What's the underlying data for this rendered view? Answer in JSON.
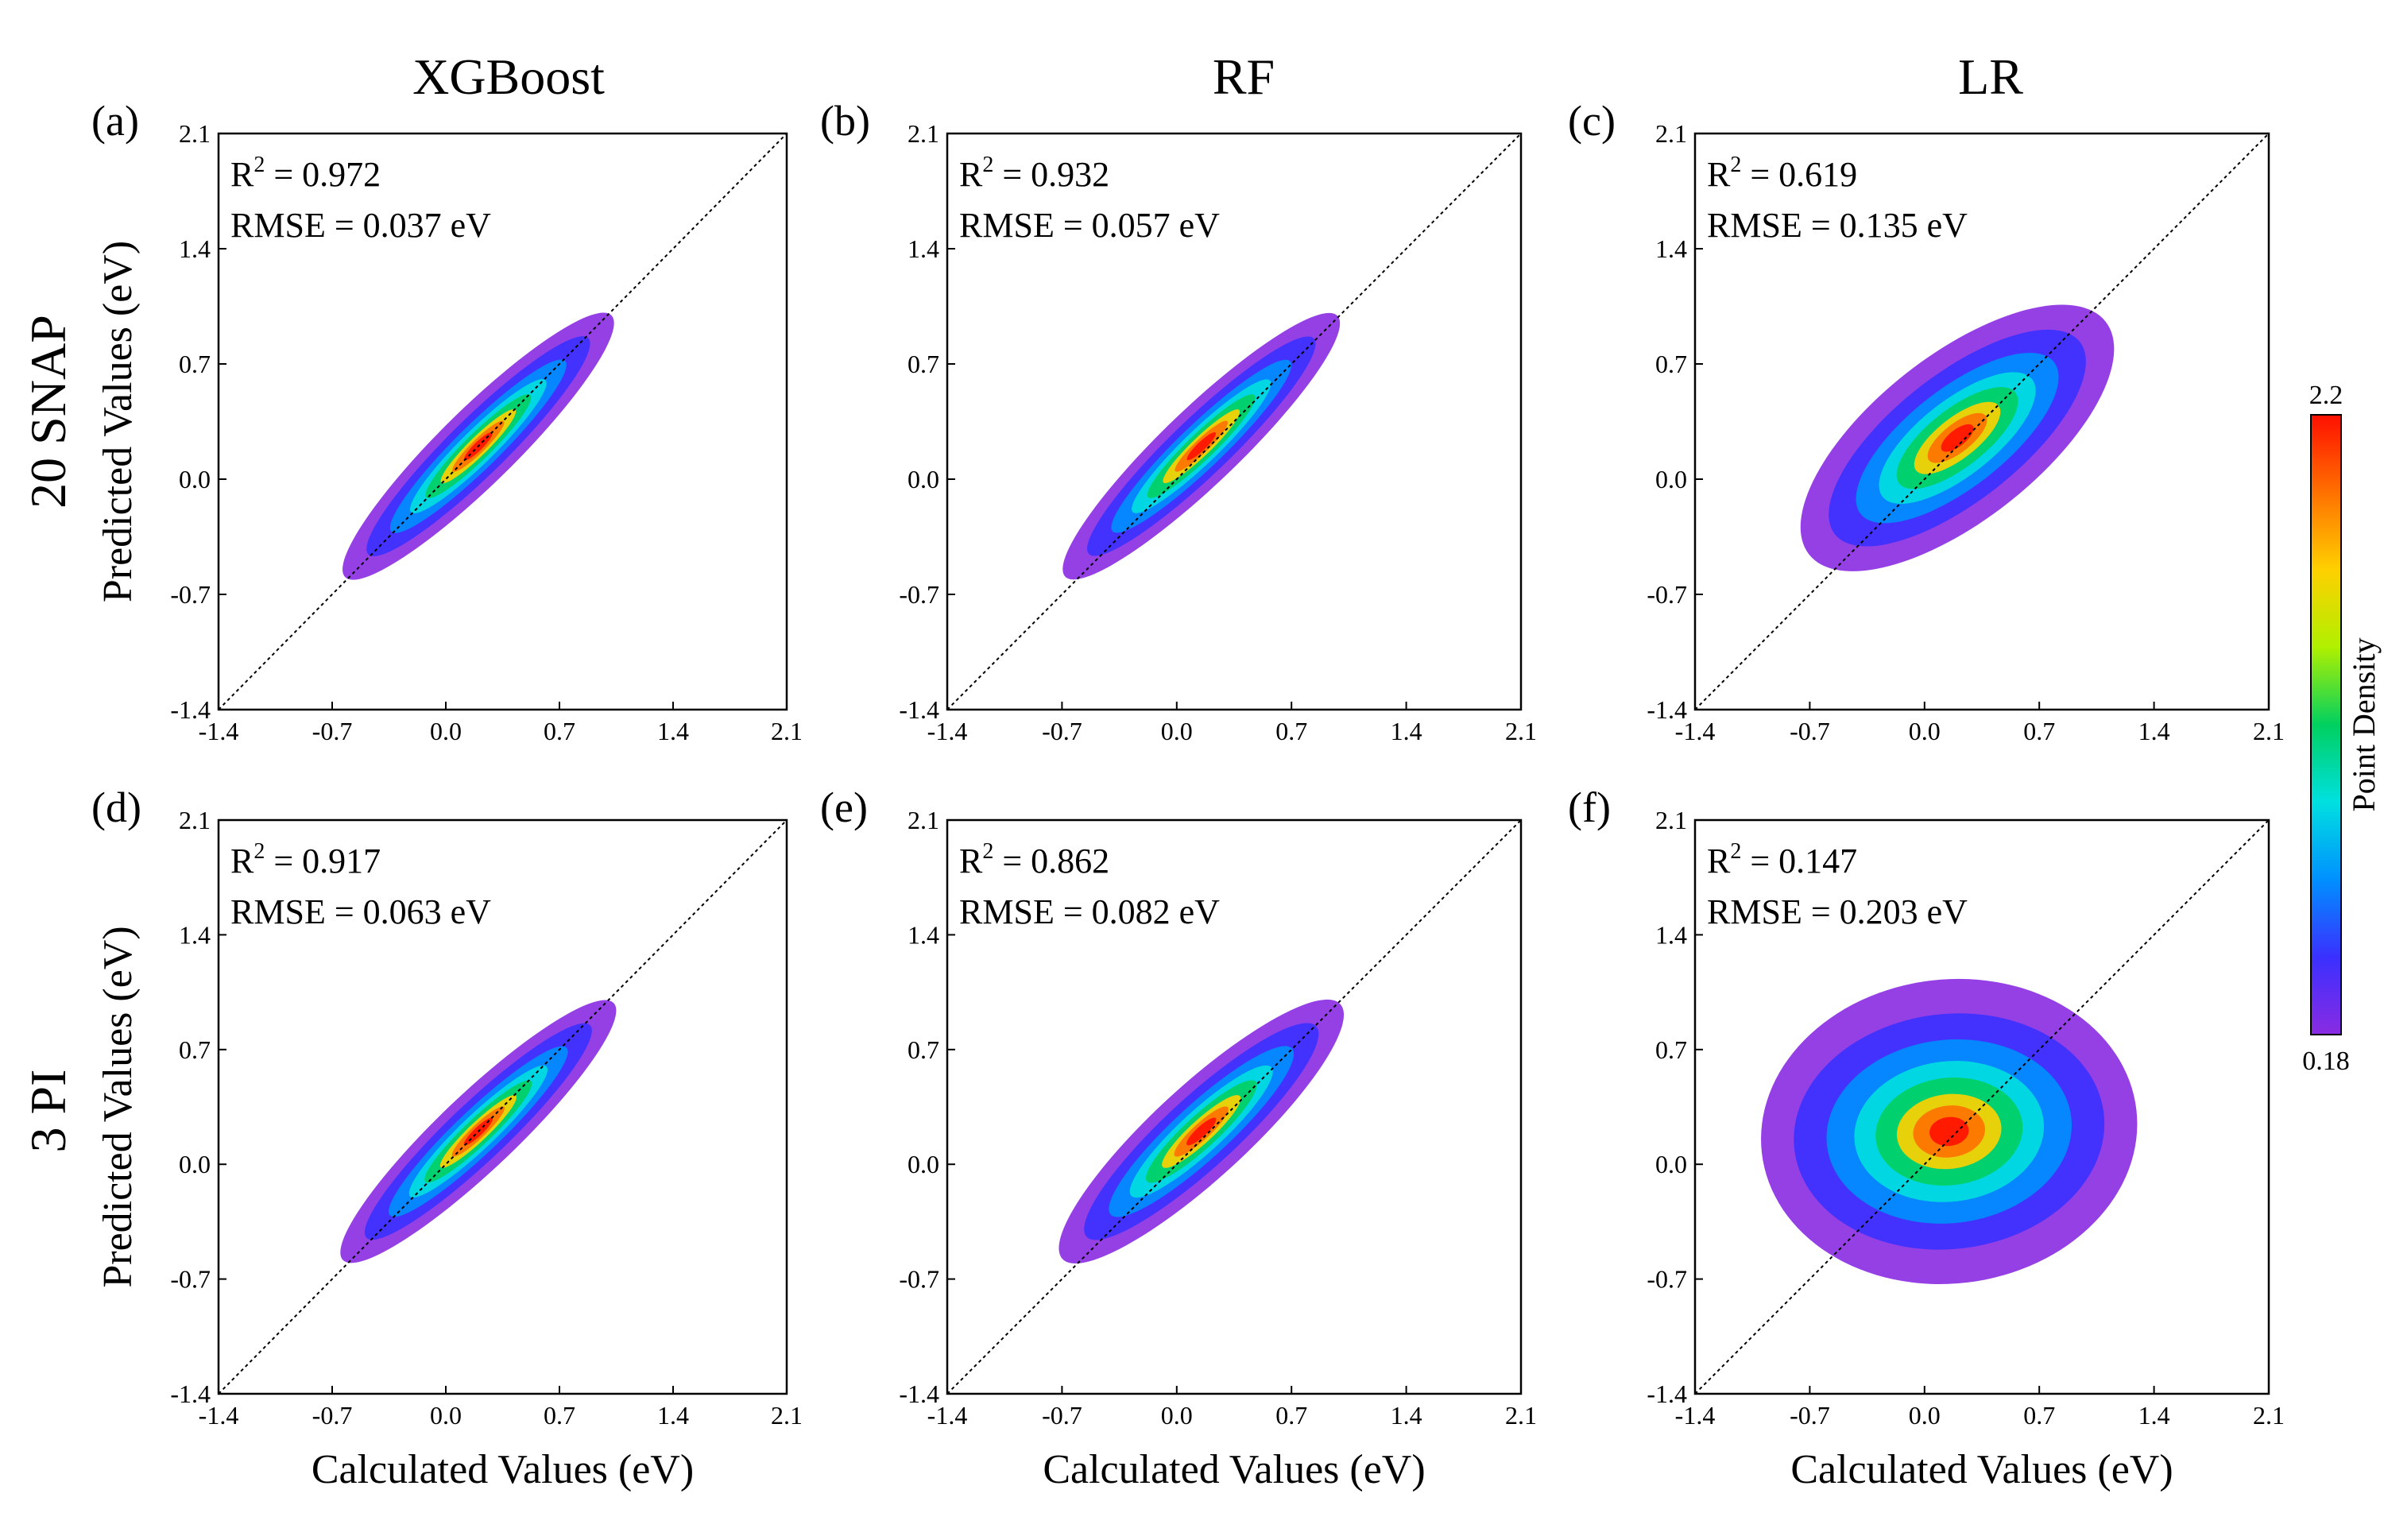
{
  "column_titles": [
    "XGBoost",
    "RF",
    "LR"
  ],
  "row_titles": [
    "20 SNAP",
    "3 PI"
  ],
  "axes": {
    "xlabel": "Calculated Values (eV)",
    "ylabel": "Predicted Values (eV)",
    "tick_labels": [
      "-1.4",
      "-0.7",
      "0.0",
      "0.7",
      "1.4",
      "2.1"
    ]
  },
  "colorbar": {
    "label": "Point Density",
    "max_label": "2.2",
    "min_label": "0.18",
    "colors": [
      "#8a2be2",
      "#3a30ff",
      "#0090ff",
      "#00e0e0",
      "#00d060",
      "#b0f000",
      "#ffd000",
      "#ff7000",
      "#ff1000"
    ]
  },
  "chart_data": [
    {
      "panel": "(a)",
      "model": "XGBoost",
      "feature_set": "20 SNAP",
      "type": "scatter",
      "r2_label": "R",
      "r2_sup": "2",
      "r2_value": " = 0.972",
      "rmse_text": "RMSE = 0.037 eV",
      "xlim": [
        -1.4,
        2.1
      ],
      "ylim": [
        -1.4,
        2.1
      ],
      "r2": 0.972,
      "rmse": 0.037,
      "density_peak": [
        0.2,
        0.2
      ]
    },
    {
      "panel": "(b)",
      "model": "RF",
      "feature_set": "20 SNAP",
      "type": "scatter",
      "r2_label": "R",
      "r2_sup": "2",
      "r2_value": " = 0.932",
      "rmse_text": "RMSE = 0.057 eV",
      "xlim": [
        -1.4,
        2.1
      ],
      "ylim": [
        -1.4,
        2.1
      ],
      "r2": 0.932,
      "rmse": 0.057,
      "density_peak": [
        0.15,
        0.2
      ]
    },
    {
      "panel": "(c)",
      "model": "LR",
      "feature_set": "20 SNAP",
      "type": "scatter",
      "r2_label": "R",
      "r2_sup": "2",
      "r2_value": " = 0.619",
      "rmse_text": "RMSE = 0.135 eV",
      "xlim": [
        -1.4,
        2.1
      ],
      "ylim": [
        -1.4,
        2.1
      ],
      "r2": 0.619,
      "rmse": 0.135,
      "density_peak": [
        0.2,
        0.25
      ]
    },
    {
      "panel": "(d)",
      "model": "XGBoost",
      "feature_set": "3 PI",
      "type": "scatter",
      "r2_label": "R",
      "r2_sup": "2",
      "r2_value": " = 0.917",
      "rmse_text": "RMSE = 0.063 eV",
      "xlim": [
        -1.4,
        2.1
      ],
      "ylim": [
        -1.4,
        2.1
      ],
      "r2": 0.917,
      "rmse": 0.063,
      "density_peak": [
        0.2,
        0.2
      ]
    },
    {
      "panel": "(e)",
      "model": "RF",
      "feature_set": "3 PI",
      "type": "scatter",
      "r2_label": "R",
      "r2_sup": "2",
      "r2_value": " = 0.862",
      "rmse_text": "RMSE = 0.082 eV",
      "xlim": [
        -1.4,
        2.1
      ],
      "ylim": [
        -1.4,
        2.1
      ],
      "r2": 0.862,
      "rmse": 0.082,
      "density_peak": [
        0.15,
        0.2
      ]
    },
    {
      "panel": "(f)",
      "model": "LR",
      "feature_set": "3 PI",
      "type": "scatter",
      "r2_label": "R",
      "r2_sup": "2",
      "r2_value": " = 0.147",
      "rmse_text": "RMSE = 0.203 eV",
      "xlim": [
        -1.4,
        2.1
      ],
      "ylim": [
        -1.4,
        2.1
      ],
      "r2": 0.147,
      "rmse": 0.203,
      "density_peak": [
        0.15,
        0.2
      ]
    }
  ]
}
